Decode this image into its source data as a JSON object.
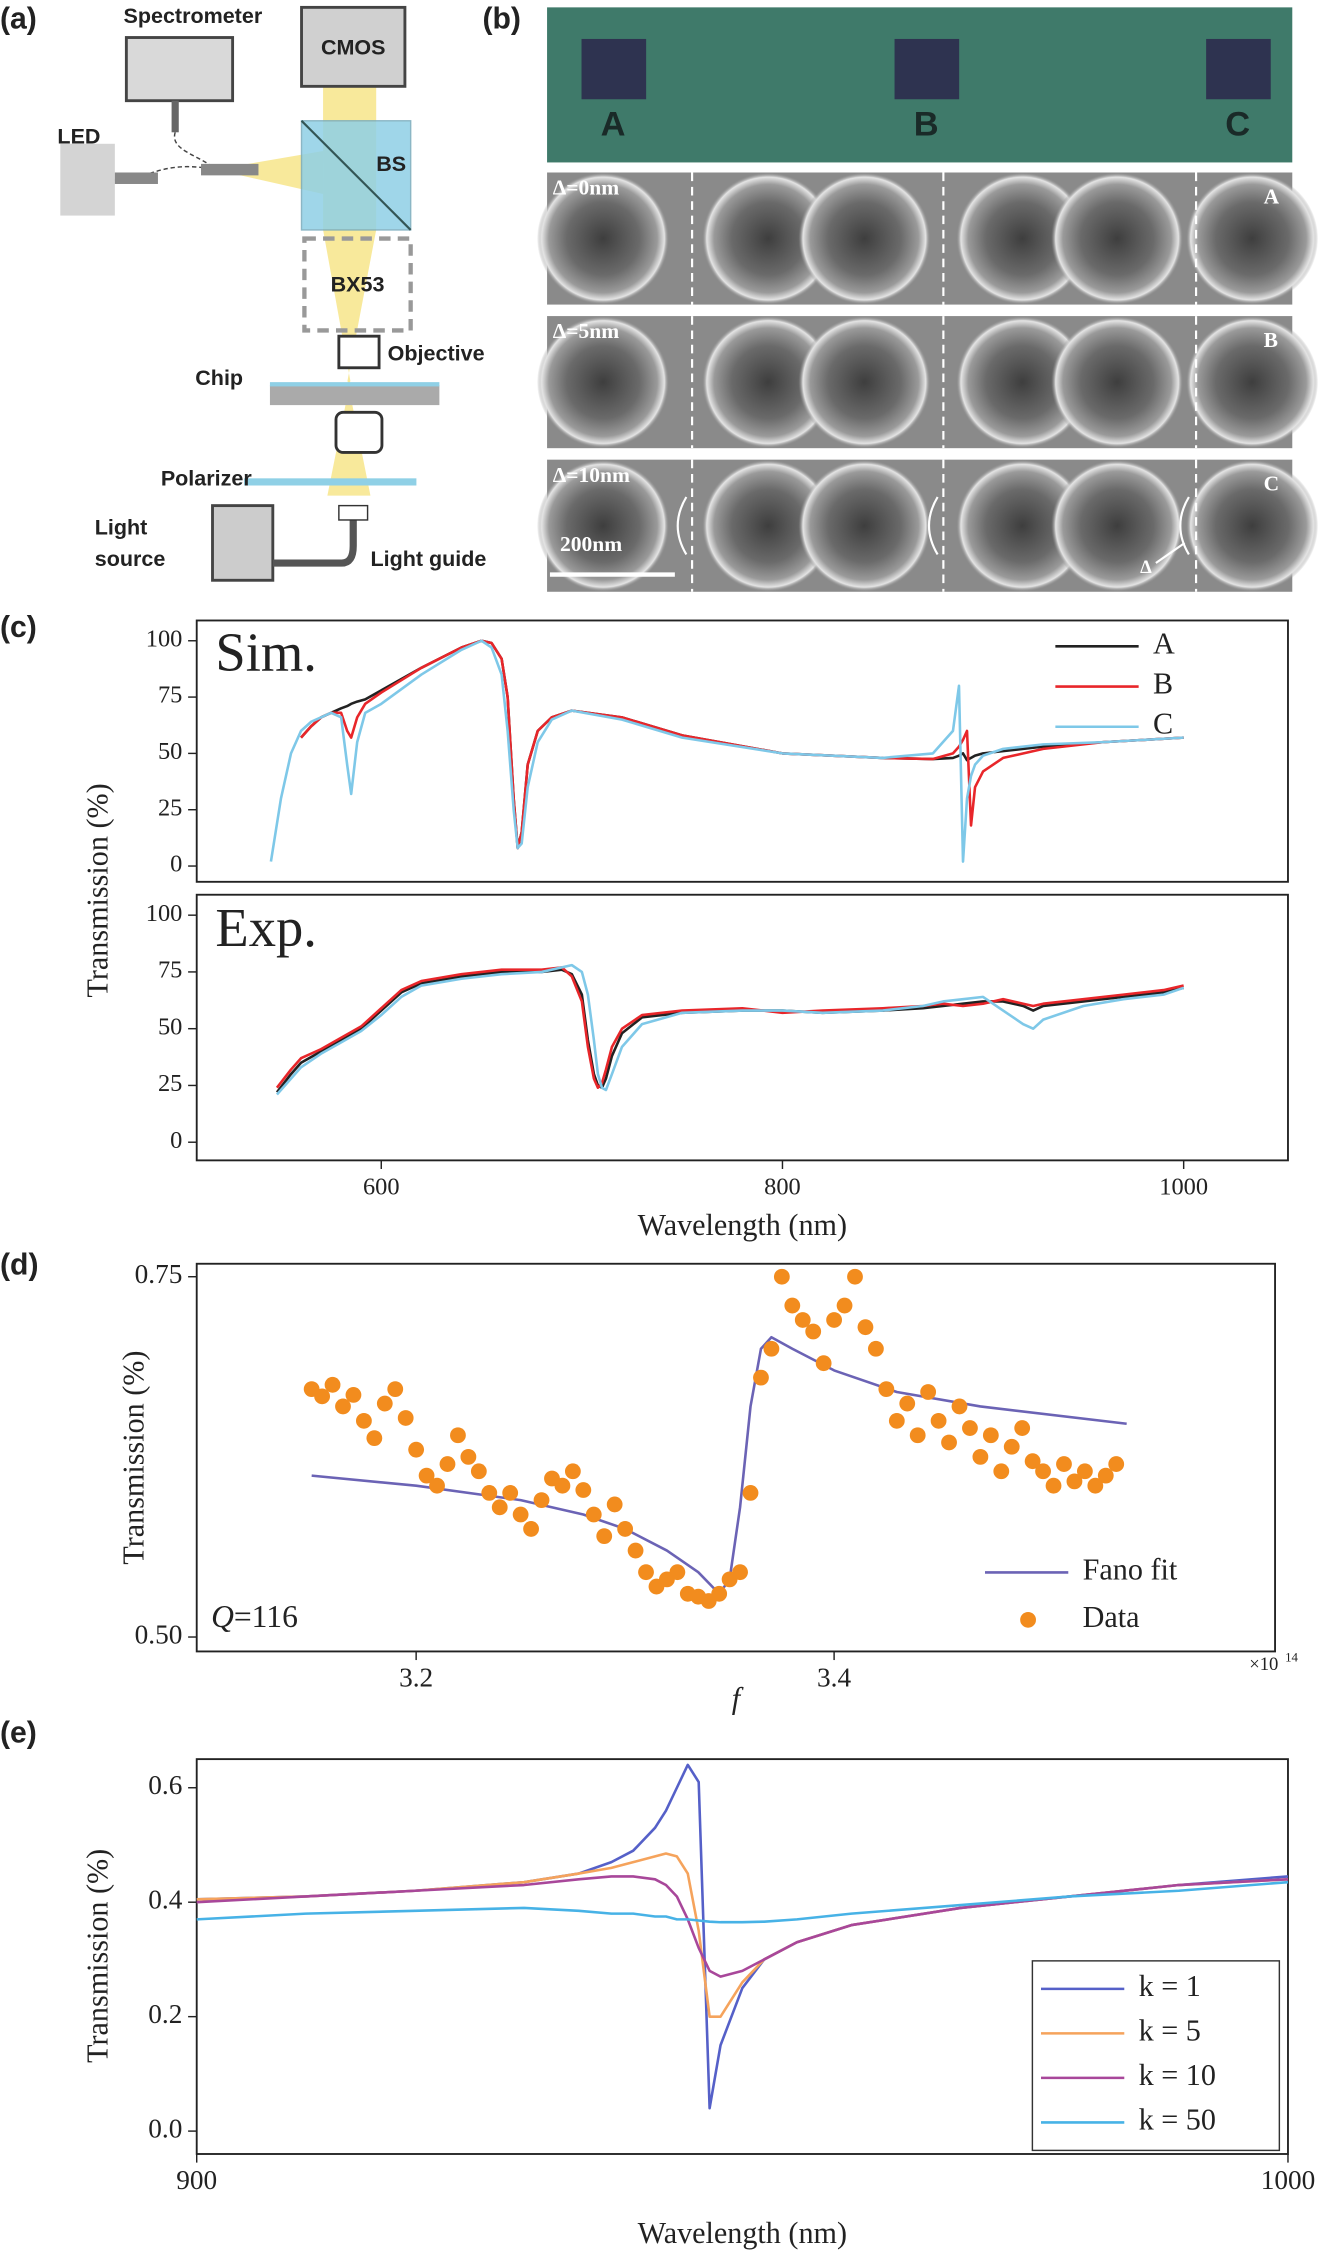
{
  "panel_labels": [
    "(a)",
    "(b)",
    "(c)",
    "(d)",
    "(e)"
  ],
  "diagram": {
    "nodes": [
      {
        "label": "Spectrometer"
      },
      {
        "label": "CMOS"
      },
      {
        "label": "LED"
      },
      {
        "label": "BS"
      },
      {
        "label": "BX53"
      },
      {
        "label": "Objective"
      },
      {
        "label": "Chip"
      },
      {
        "label": "Polarizer"
      },
      {
        "lines": [
          "Light",
          "source"
        ]
      },
      {
        "label": "Light guide"
      }
    ]
  },
  "sem": {
    "chip_letters": [
      "A",
      "B",
      "C"
    ],
    "rows": [
      {
        "label": "Δ=0nm",
        "letter": "A"
      },
      {
        "label": "Δ=5nm",
        "letter": "B"
      },
      {
        "label": "Δ=10nm",
        "letter": "C"
      }
    ],
    "scale_bar": "200nm",
    "delta": "Δ"
  },
  "chart_data": [
    {
      "type": "line",
      "annotation": "Sim.",
      "legend": "upper right",
      "x": [
        545,
        550,
        555,
        560,
        565,
        570,
        575,
        580,
        583,
        585,
        588,
        592,
        600,
        620,
        640,
        650,
        655,
        660,
        663,
        666,
        668,
        670,
        673,
        678,
        685,
        695,
        720,
        750,
        800,
        850,
        875,
        885,
        888,
        890,
        892,
        894,
        896,
        900,
        910,
        930,
        960,
        1000
      ],
      "xlim": [
        508,
        1052
      ],
      "ylim": [
        -7,
        109
      ],
      "yticks": [
        0,
        25,
        50,
        75,
        100
      ],
      "series": [
        {
          "name": "A",
          "color": "#222222",
          "values": [
            null,
            null,
            null,
            57,
            62,
            66,
            68,
            70,
            71,
            72,
            73,
            74,
            78,
            88,
            97,
            100,
            99,
            92,
            75,
            30,
            8,
            15,
            45,
            60,
            66,
            69,
            66,
            58,
            50,
            48,
            47.5,
            48,
            49,
            50,
            47,
            48,
            49,
            50,
            51,
            53,
            55,
            57
          ]
        },
        {
          "name": "B",
          "color": "#e8262a",
          "values": [
            null,
            null,
            null,
            57,
            62,
            66,
            68,
            68,
            60,
            57,
            66,
            72,
            77,
            88,
            97,
            100,
            99,
            92,
            75,
            30,
            8,
            15,
            45,
            60,
            66,
            69,
            66,
            58,
            50,
            48,
            47.5,
            50,
            53,
            56,
            60,
            18,
            35,
            42,
            48,
            52,
            55,
            57
          ]
        },
        {
          "name": "C",
          "color": "#7ec8e8",
          "values": [
            2,
            30,
            50,
            60,
            64,
            66,
            68,
            66,
            45,
            32,
            55,
            68,
            72,
            85,
            96,
            100,
            97,
            85,
            60,
            25,
            8,
            10,
            35,
            55,
            65,
            69,
            65,
            57,
            50,
            48,
            50,
            60,
            80,
            2,
            30,
            40,
            45,
            49,
            52,
            54,
            55,
            57
          ]
        }
      ]
    },
    {
      "type": "line",
      "annotation": "Exp.",
      "ylabel": "Transmission (%)",
      "xlabel": "Wavelength (nm)",
      "x": [
        548,
        555,
        560,
        570,
        580,
        590,
        600,
        610,
        620,
        640,
        660,
        680,
        690,
        695,
        700,
        703,
        706,
        708,
        710,
        712,
        715,
        720,
        730,
        750,
        780,
        800,
        820,
        850,
        870,
        880,
        890,
        900,
        910,
        920,
        925,
        930,
        950,
        970,
        990,
        1000
      ],
      "xlim": [
        508,
        1052
      ],
      "ylim": [
        -8,
        109
      ],
      "yticks": [
        0,
        25,
        50,
        75,
        100
      ],
      "xticks": [
        600,
        800,
        1000
      ],
      "series": [
        {
          "color": "#222222",
          "values": [
            22,
            30,
            35,
            40,
            45,
            50,
            58,
            66,
            70,
            73,
            75,
            75,
            76,
            74,
            65,
            45,
            30,
            25,
            24,
            28,
            38,
            48,
            55,
            57,
            58,
            58,
            57,
            58,
            59,
            60,
            61,
            62,
            62,
            60,
            58,
            60,
            62,
            64,
            66,
            68
          ]
        },
        {
          "color": "#e8262a",
          "values": [
            24,
            32,
            37,
            41,
            46,
            51,
            59,
            67,
            71,
            74,
            76,
            76,
            77,
            73,
            62,
            42,
            28,
            24,
            26,
            32,
            42,
            50,
            56,
            58,
            59,
            57,
            58,
            59,
            60,
            61,
            60,
            61,
            63,
            61,
            60,
            61,
            63,
            65,
            67,
            69
          ]
        },
        {
          "color": "#7ec8e8",
          "values": [
            21,
            28,
            33,
            39,
            44,
            49,
            56,
            64,
            69,
            72,
            74,
            75,
            77,
            78,
            75,
            65,
            45,
            30,
            24,
            23,
            30,
            42,
            52,
            57,
            58,
            58,
            57,
            58,
            60,
            62,
            63,
            64,
            58,
            52,
            50,
            54,
            60,
            63,
            65,
            68
          ]
        }
      ]
    },
    {
      "type": "scatter",
      "ylabel": "Transmission (%)",
      "xlabel": "f",
      "x_multiplier": "×10",
      "x_exponent": "14",
      "annotation": {
        "symbol": "Q",
        "text": "=116"
      },
      "legend": "lower right",
      "xlim": [
        3.095,
        3.611
      ],
      "ylim": [
        0.49,
        0.759
      ],
      "xticks": [
        3.2,
        3.4
      ],
      "yticks": [
        {
          "value": 0.5,
          "label": "0.50"
        },
        {
          "value": 0.75,
          "label": "0.75"
        }
      ],
      "series": [
        {
          "name": "Fano fit",
          "color": "#6b63b5",
          "style": "line",
          "x": [
            3.15,
            3.2,
            3.25,
            3.28,
            3.3,
            3.32,
            3.335,
            3.345,
            3.35,
            3.355,
            3.36,
            3.365,
            3.37,
            3.38,
            3.4,
            3.43,
            3.47,
            3.54
          ],
          "values": [
            0.612,
            0.605,
            0.595,
            0.585,
            0.575,
            0.56,
            0.545,
            0.53,
            0.54,
            0.59,
            0.66,
            0.7,
            0.708,
            0.7,
            0.685,
            0.67,
            0.66,
            0.648
          ]
        },
        {
          "name": "Data",
          "color": "#f28c1e",
          "style": "markers",
          "x": [
            3.15,
            3.155,
            3.16,
            3.165,
            3.17,
            3.175,
            3.18,
            3.185,
            3.19,
            3.195,
            3.2,
            3.205,
            3.21,
            3.215,
            3.22,
            3.225,
            3.23,
            3.235,
            3.24,
            3.245,
            3.25,
            3.255,
            3.26,
            3.265,
            3.27,
            3.275,
            3.28,
            3.285,
            3.29,
            3.295,
            3.3,
            3.305,
            3.31,
            3.315,
            3.32,
            3.325,
            3.33,
            3.335,
            3.34,
            3.345,
            3.35,
            3.355,
            3.36,
            3.365,
            3.37,
            3.375,
            3.38,
            3.385,
            3.39,
            3.395,
            3.4,
            3.405,
            3.41,
            3.415,
            3.42,
            3.425,
            3.43,
            3.435,
            3.44,
            3.445,
            3.45,
            3.455,
            3.46,
            3.465,
            3.47,
            3.475,
            3.48,
            3.485,
            3.49,
            3.495,
            3.5,
            3.505,
            3.51,
            3.515,
            3.52,
            3.525,
            3.53,
            3.535
          ],
          "values": [
            0.672,
            0.667,
            0.675,
            0.66,
            0.668,
            0.65,
            0.638,
            0.662,
            0.672,
            0.652,
            0.63,
            0.612,
            0.605,
            0.62,
            0.64,
            0.625,
            0.615,
            0.6,
            0.59,
            0.6,
            0.585,
            0.575,
            0.595,
            0.61,
            0.605,
            0.615,
            0.602,
            0.585,
            0.57,
            0.592,
            0.575,
            0.56,
            0.545,
            0.535,
            0.54,
            0.545,
            0.53,
            0.528,
            0.525,
            0.53,
            0.54,
            0.545,
            0.6,
            0.68,
            0.7,
            0.75,
            0.73,
            0.72,
            0.712,
            0.69,
            0.72,
            0.73,
            0.75,
            0.715,
            0.7,
            0.672,
            0.65,
            0.662,
            0.64,
            0.67,
            0.65,
            0.635,
            0.66,
            0.645,
            0.625,
            0.64,
            0.615,
            0.632,
            0.645,
            0.622,
            0.615,
            0.605,
            0.62,
            0.608,
            0.615,
            0.605,
            0.612,
            0.62
          ]
        }
      ]
    },
    {
      "type": "line",
      "ylabel": "Transmission (%)",
      "xlabel": "Wavelength (nm)",
      "legend": "lower right",
      "legend_frame": true,
      "x": [
        900,
        910,
        920,
        930,
        935,
        938,
        940,
        942,
        943,
        944,
        945,
        946,
        947,
        948,
        950,
        952,
        955,
        960,
        970,
        980,
        990,
        1000
      ],
      "xlim": [
        900,
        1000
      ],
      "ylim": [
        -0.04,
        0.65
      ],
      "xticks": [
        900,
        1000
      ],
      "yticks": [
        {
          "value": 0,
          "label": "0.0"
        },
        0.2,
        0.4,
        0.6
      ],
      "series": [
        {
          "name": "k = 1",
          "color": "#5560c8",
          "values": [
            0.405,
            0.41,
            0.42,
            0.435,
            0.45,
            0.47,
            0.49,
            0.53,
            0.56,
            0.6,
            0.64,
            0.61,
            0.04,
            0.15,
            0.25,
            0.3,
            0.33,
            0.36,
            0.39,
            0.41,
            0.43,
            0.445
          ]
        },
        {
          "name": "k = 5",
          "color": "#f5a35c",
          "values": [
            0.405,
            0.41,
            0.42,
            0.435,
            0.45,
            0.46,
            0.47,
            0.48,
            0.485,
            0.48,
            0.45,
            0.35,
            0.2,
            0.2,
            0.26,
            0.3,
            0.33,
            0.36,
            0.39,
            0.41,
            0.43,
            0.44
          ]
        },
        {
          "name": "k = 10",
          "color": "#a8479a",
          "values": [
            0.4,
            0.41,
            0.42,
            0.43,
            0.44,
            0.445,
            0.445,
            0.44,
            0.43,
            0.41,
            0.37,
            0.32,
            0.28,
            0.27,
            0.28,
            0.3,
            0.33,
            0.36,
            0.39,
            0.41,
            0.43,
            0.44
          ]
        },
        {
          "name": "k = 50",
          "color": "#47b2e6",
          "values": [
            0.37,
            0.38,
            0.385,
            0.39,
            0.385,
            0.38,
            0.38,
            0.375,
            0.375,
            0.37,
            0.37,
            0.368,
            0.366,
            0.365,
            0.365,
            0.366,
            0.37,
            0.38,
            0.395,
            0.41,
            0.42,
            0.435
          ]
        }
      ]
    }
  ]
}
